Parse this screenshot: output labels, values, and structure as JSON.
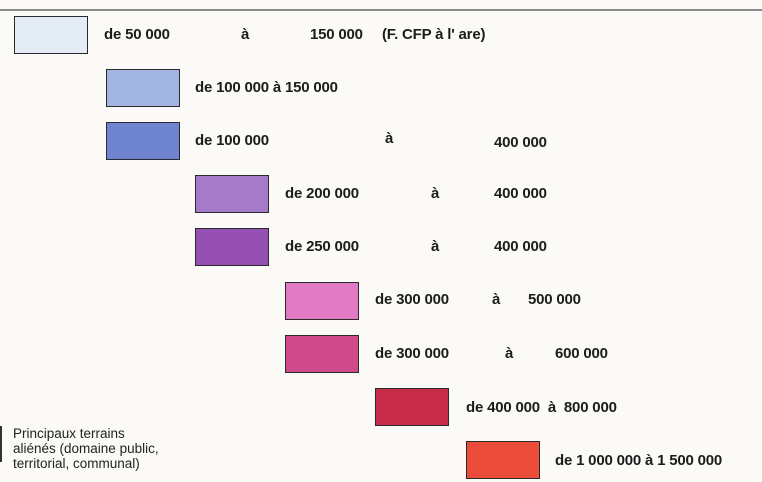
{
  "legend": {
    "rows": [
      {
        "parts": [
          "de 50 000",
          "à",
          "150 000",
          "(F. CFP à l' are)"
        ],
        "color": "#e4ecf5"
      },
      {
        "parts": [
          "de 100 000 à 150 000"
        ],
        "color": "#a2b4e0"
      },
      {
        "parts": [
          "de 100 000",
          "à",
          "400 000"
        ],
        "color": "#6f84cf"
      },
      {
        "parts": [
          "de 200 000",
          "à",
          "400 000"
        ],
        "color": "#a77ac9"
      },
      {
        "parts": [
          "de 250 000",
          "à",
          "400 000"
        ],
        "color": "#9650b4"
      },
      {
        "parts": [
          "de 300 000",
          "à",
          "500 000"
        ],
        "color": "#e07ac2"
      },
      {
        "parts": [
          "de 300 000",
          "à",
          "600 000"
        ],
        "color": "#cf4a8a"
      },
      {
        "parts": [
          "de 400 000  à  800 000"
        ],
        "color": "#c72c4b"
      },
      {
        "parts": [
          "de 1 000 000 à 1 500 000"
        ],
        "color": "#ec4c3a"
      }
    ],
    "note_lines": [
      "Principaux terrains",
      "aliénés (domaine public,",
      "territorial, communal)"
    ]
  }
}
